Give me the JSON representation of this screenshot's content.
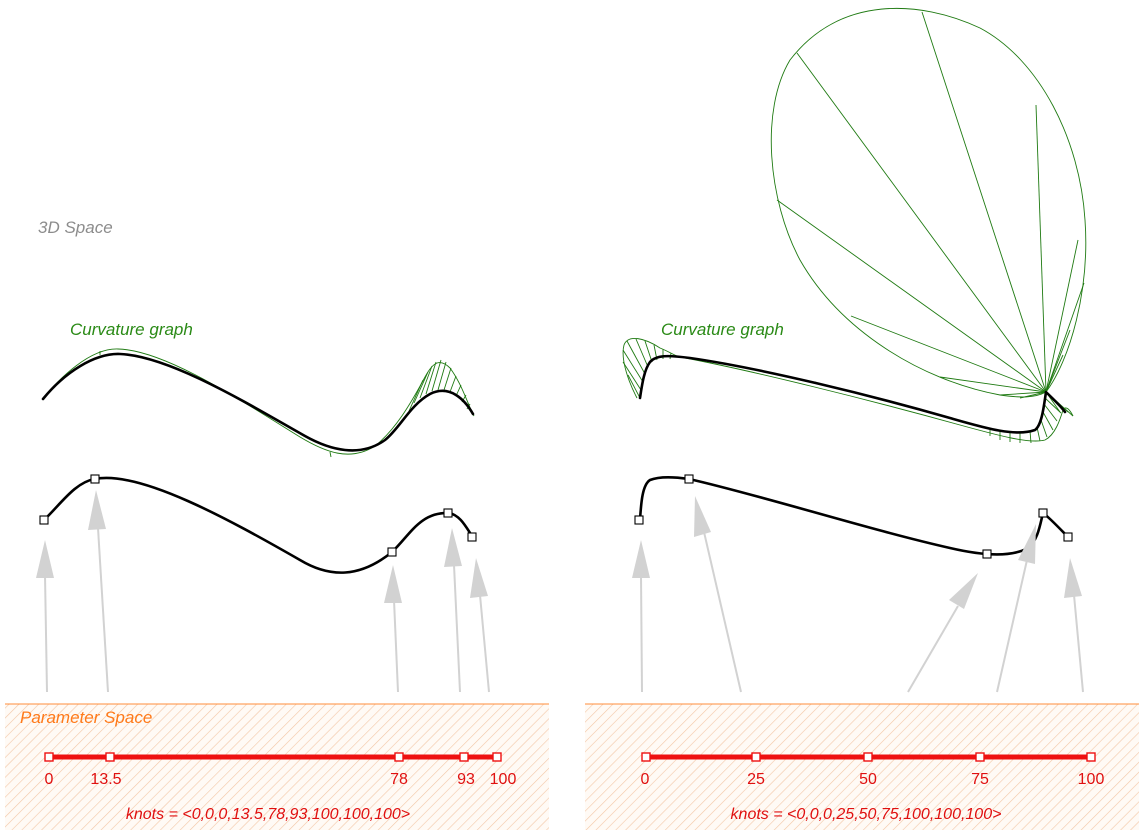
{
  "labels": {
    "space_3d": "3D Space",
    "curvature_left": "Curvature graph",
    "curvature_right": "Curvature graph",
    "param_space": "Parameter Space"
  },
  "left": {
    "knot_ticks": [
      "0",
      "13.5",
      "78",
      "93",
      "100"
    ],
    "knots_text": "knots = <0,0,0,13.5,78,93,100,100,100>"
  },
  "right": {
    "knot_ticks": [
      "0",
      "25",
      "50",
      "75",
      "100"
    ],
    "knots_text": "knots = <0,0,0,25,50,75,100,100,100>"
  },
  "colors": {
    "curve": "#000000",
    "curvature_comb": "#1f7a12",
    "knot_line": "#ee1111",
    "arrow": "#d2d2d2",
    "param_space_hatch": "#f3c7a6",
    "param_space_border": "#ff8c3a",
    "label_3d": "#8c8c8c"
  }
}
